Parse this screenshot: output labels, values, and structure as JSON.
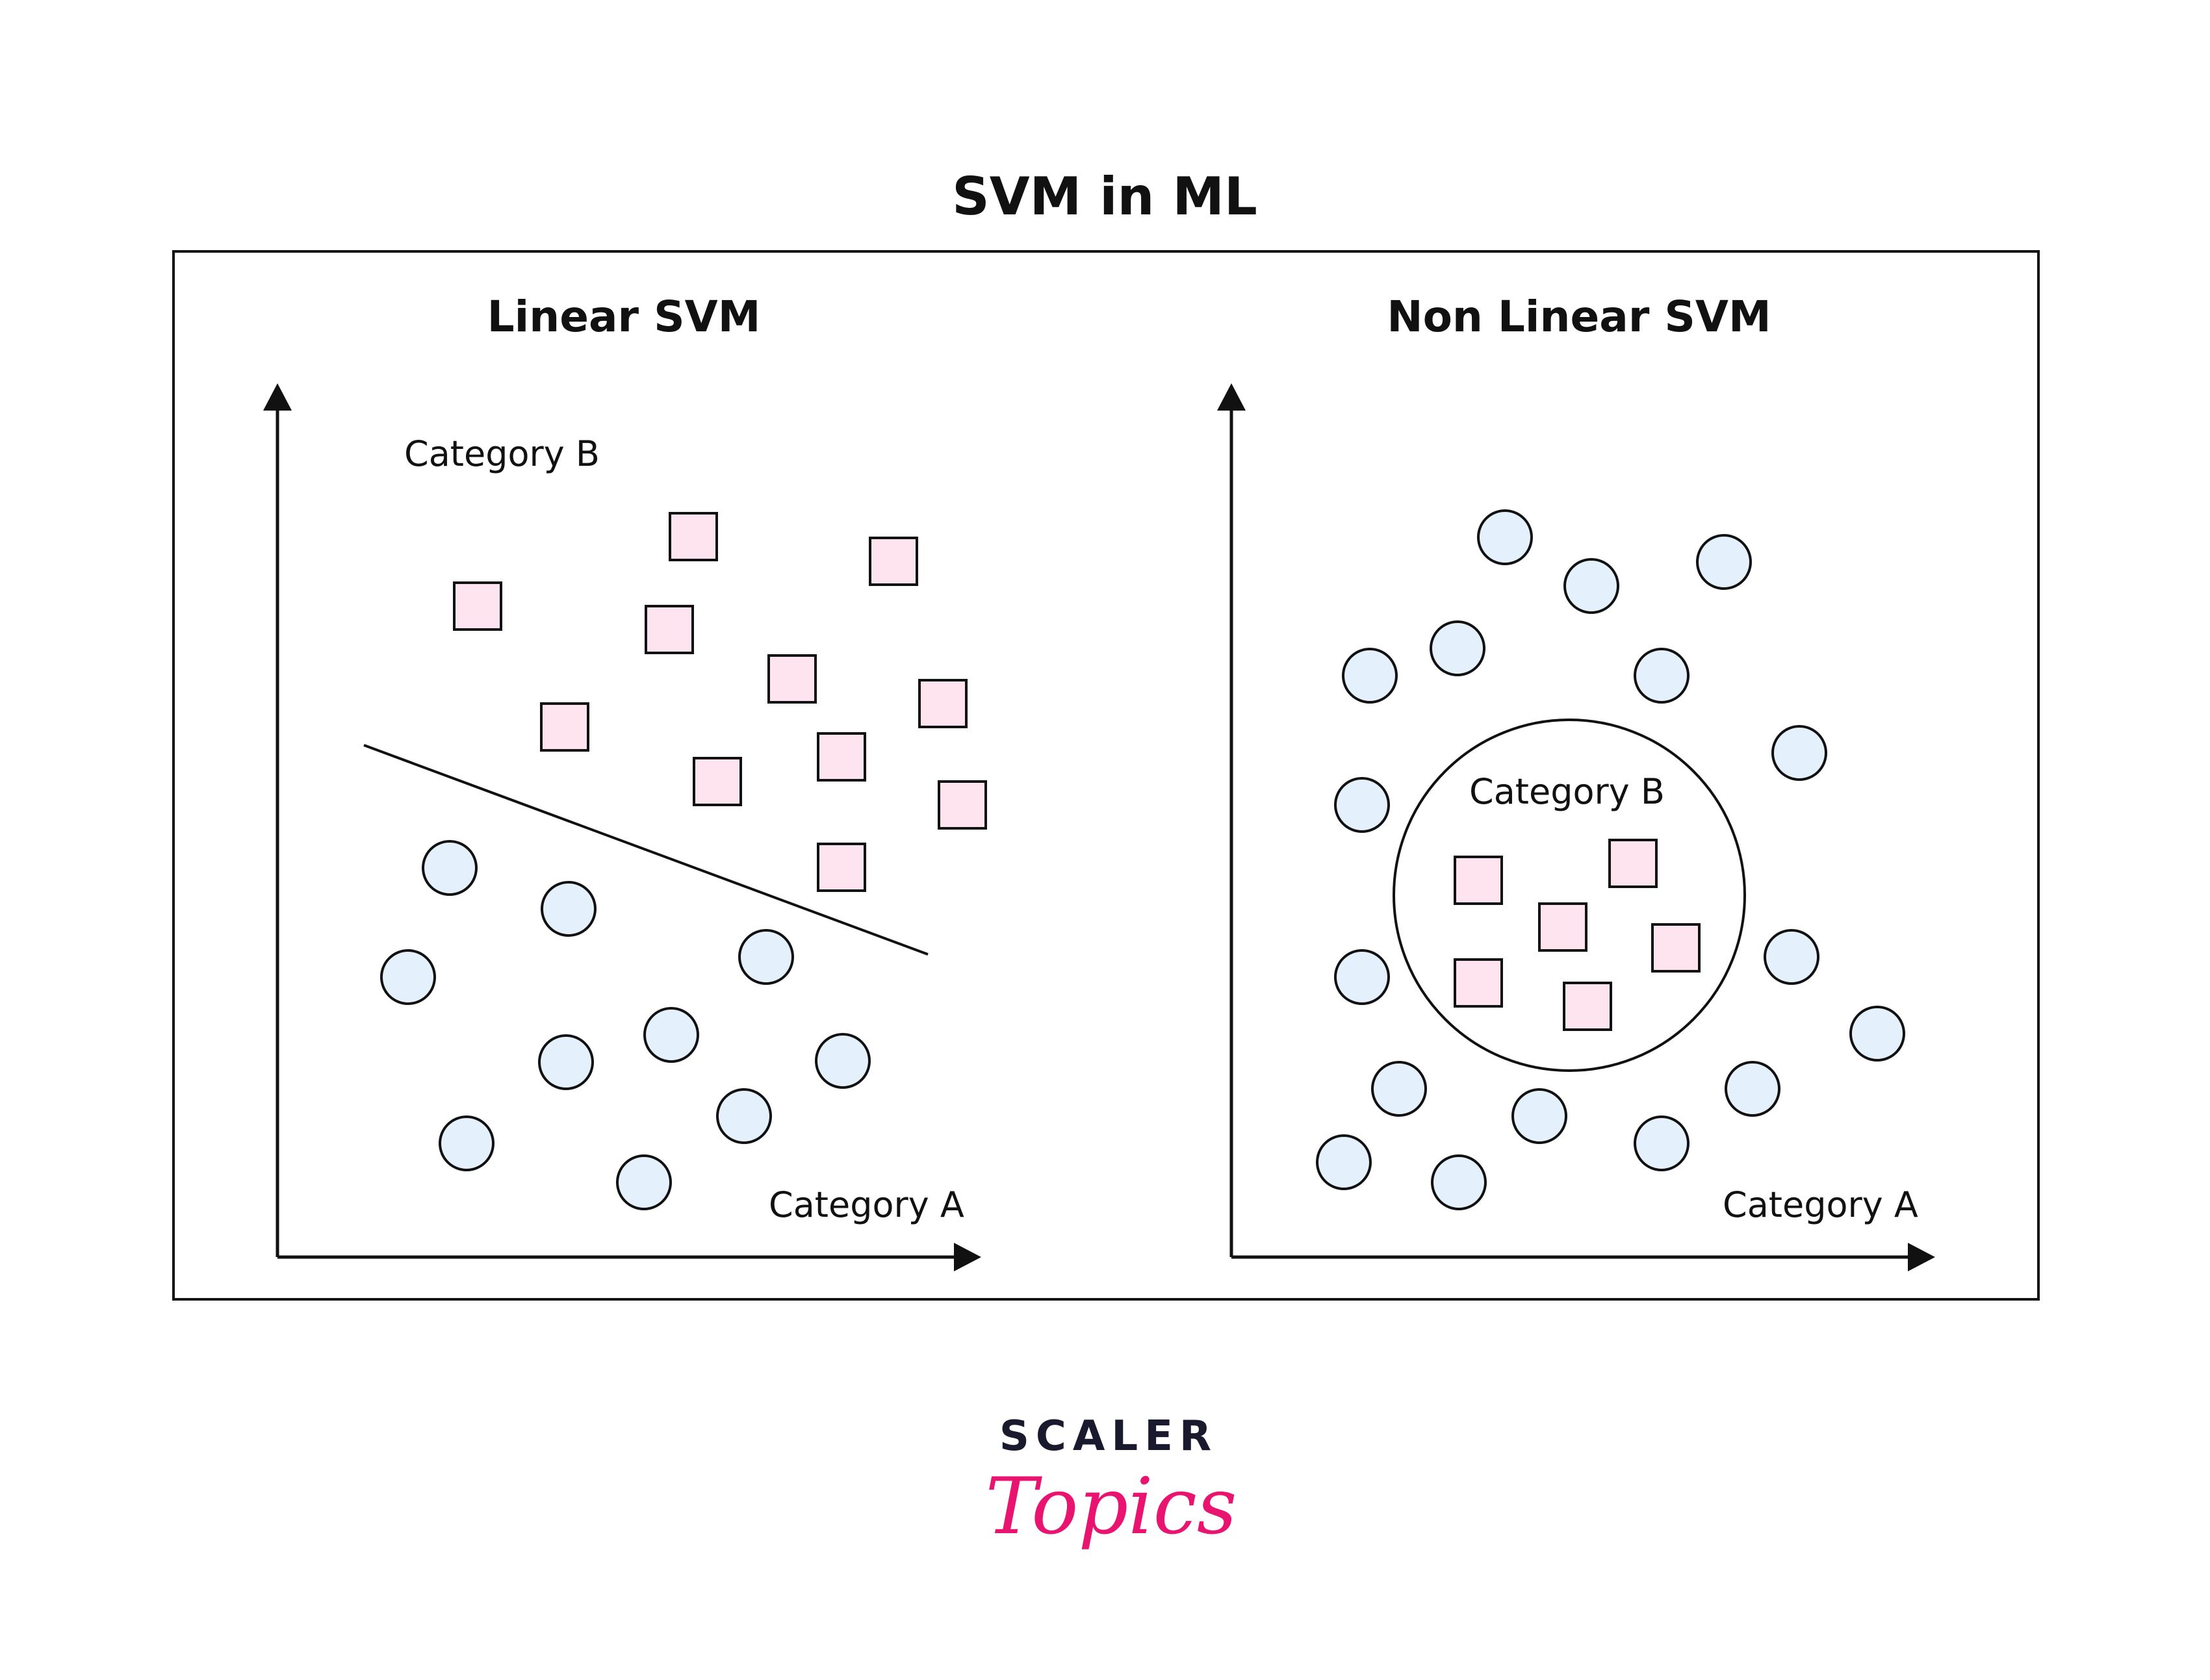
{
  "title": "SVM in ML",
  "colors": {
    "circle_fill": "#e4f1fc",
    "square_fill": "#fde4ee",
    "stroke": "#111111",
    "logo_dark": "#1a1a2e",
    "logo_accent": "#e8146f"
  },
  "panels": {
    "linear": {
      "title": "Linear SVM",
      "category_b_label": "Category B",
      "category_a_label": "Category A"
    },
    "nonlinear": {
      "title": "Non Linear SVM",
      "category_b_label": "Category B",
      "category_a_label": "Category A"
    }
  },
  "logo": {
    "top": "SCALER",
    "bottom": "Topics"
  }
}
